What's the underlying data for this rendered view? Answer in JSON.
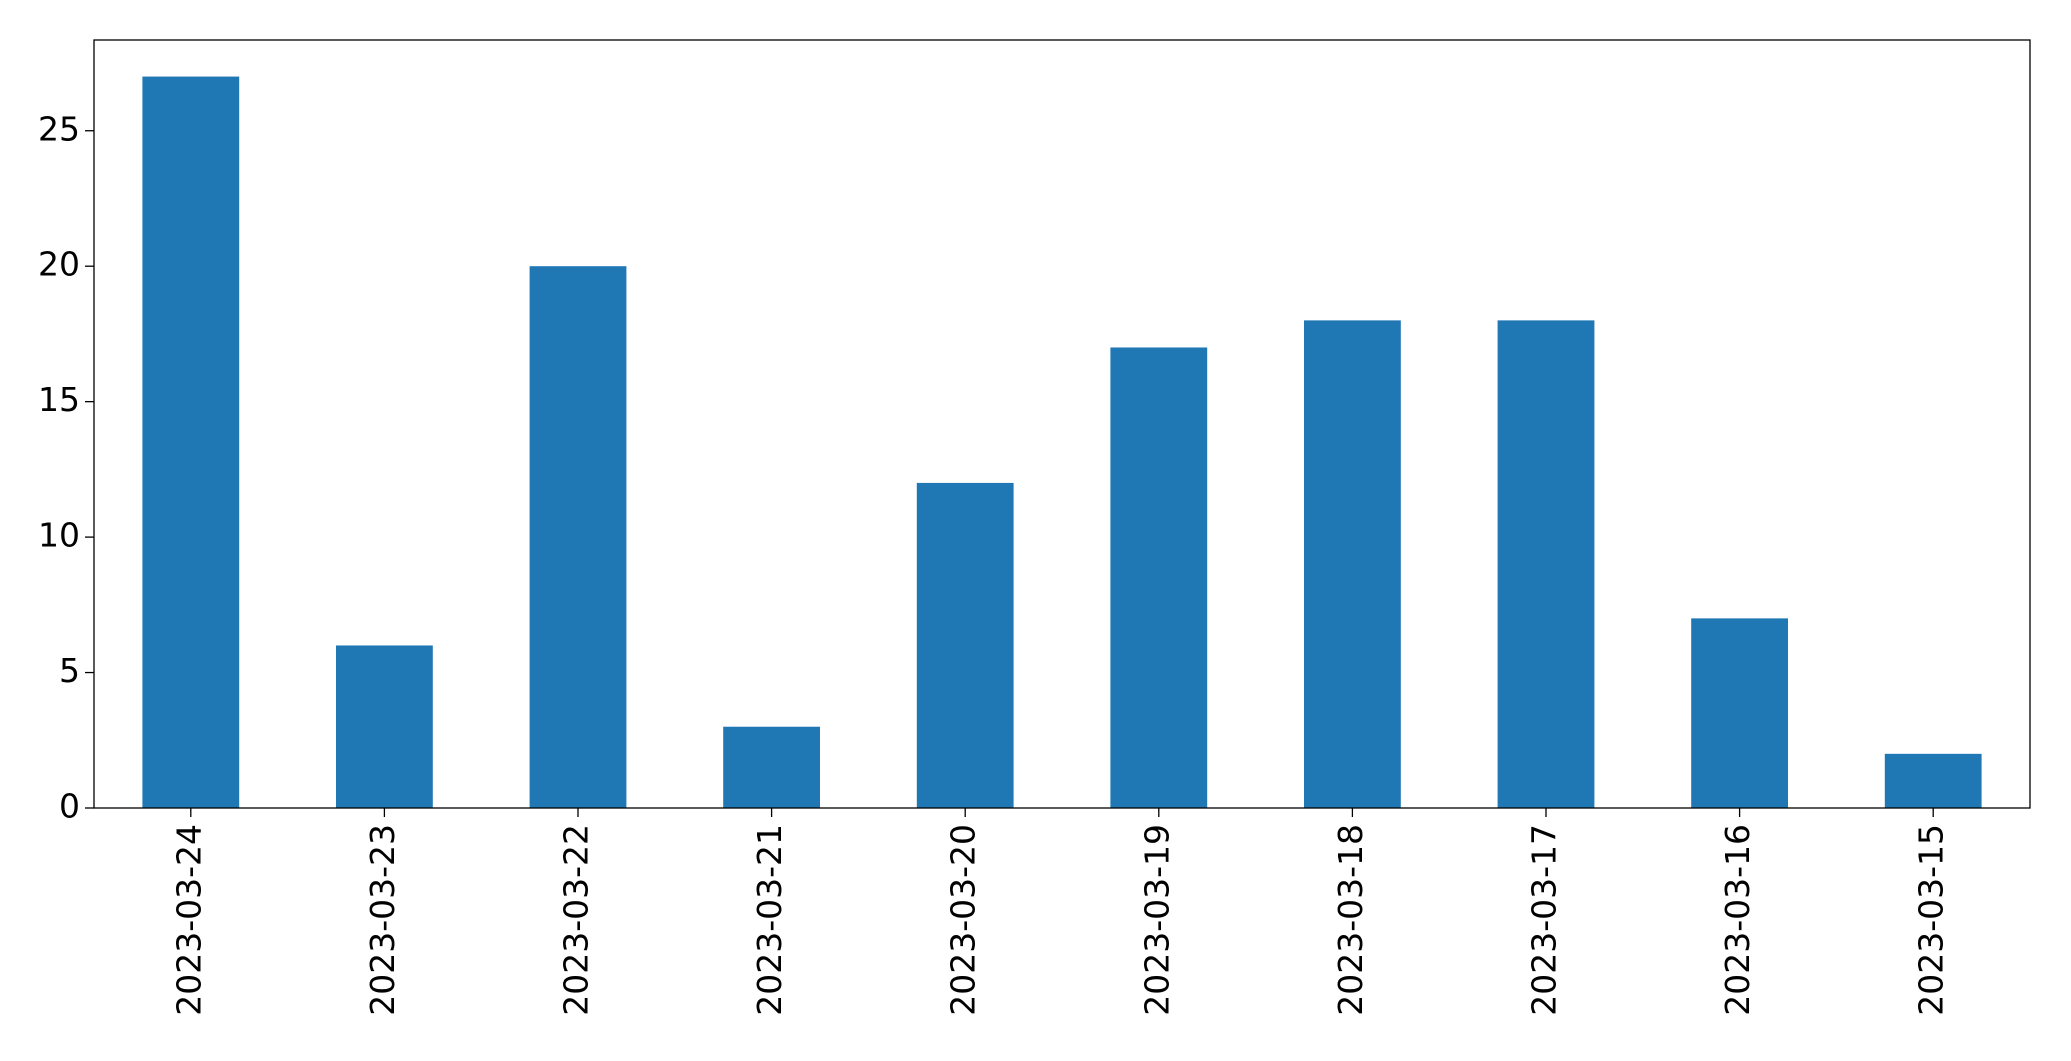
{
  "chart_data": {
    "type": "bar",
    "categories": [
      "2023-03-24",
      "2023-03-23",
      "2023-03-22",
      "2023-03-21",
      "2023-03-20",
      "2023-03-19",
      "2023-03-18",
      "2023-03-17",
      "2023-03-16",
      "2023-03-15"
    ],
    "values": [
      27,
      6,
      20,
      3,
      12,
      17,
      18,
      18,
      7,
      2
    ],
    "color": "#1f77b4",
    "ylim": [
      0,
      28.35
    ],
    "yticks": [
      0,
      5,
      10,
      15,
      20,
      25
    ],
    "grid": false
  }
}
